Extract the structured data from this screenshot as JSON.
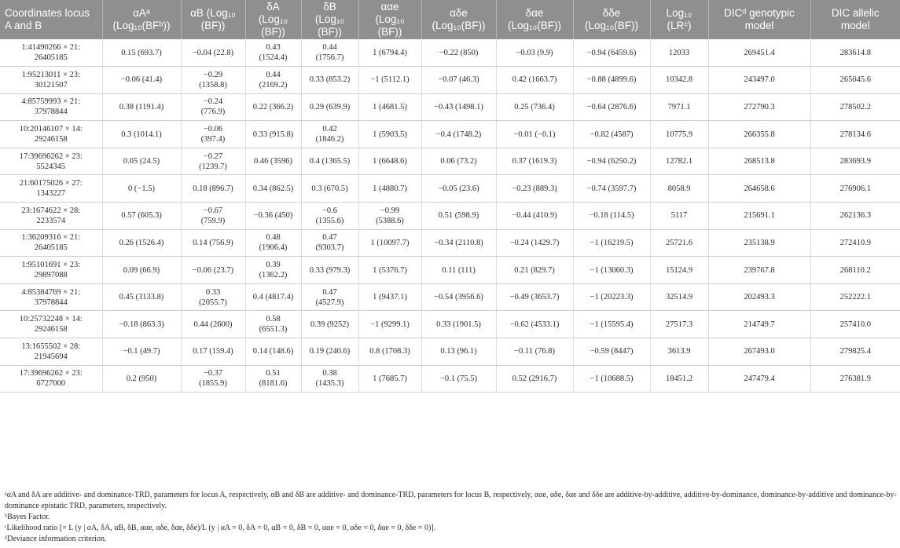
{
  "table": {
    "headers": [
      "Coordinates locus\nA and B",
      "αAᵃ\n(Log₁₀(BFᵇ))",
      "αB (Log₁₀\n(BF))",
      "δA\n(Log₁₀\n(BF))",
      "δB\n(Log₁₀\n(BF))",
      "ααe\n(Log₁₀\n(BF))",
      "αδe\n(Log₁₀(BF))",
      "δαe\n(Log₁₀(BF))",
      "δδe\n(Log₁₀(BF))",
      "Log₁₀\n(LRᶜ)",
      "DICᵈ genotypic\nmodel",
      "DIC allelic\nmodel"
    ],
    "rows": [
      [
        "1:41490266 × 21:\n26405185",
        "0.15 (693.7)",
        "−0.04 (22.8)",
        "0.43\n(1524.4)",
        "0.44\n(1756.7)",
        "1 (6794.4)",
        "−0.22 (850)",
        "−0.03 (9.9)",
        "−0.94 (6459.6)",
        "12033",
        "269451.4",
        "283614.8"
      ],
      [
        "1:95213011 × 23:\n30121507",
        "−0.06 (41.4)",
        "−0.29\n(1358.8)",
        "0.44\n(2169.2)",
        "0.33 (853.2)",
        "−1 (5112.1)",
        "−0.07 (46.3)",
        "0.42 (1663.7)",
        "−0.88 (4899.6)",
        "10342.8",
        "243497.0",
        "265045.6"
      ],
      [
        "4:85759993 × 21:\n37978844",
        "0.38 (1191.4)",
        "−0.24\n(776.9)",
        "0.22 (366.2)",
        "0.29 (639.9)",
        "1 (4681.5)",
        "−0.43 (1498.1)",
        "0.25 (736.4)",
        "−0.64 (2876.6)",
        "7971.1",
        "272790.3",
        "278502.2"
      ],
      [
        "10:20146107 × 14:\n29246158",
        "0.3 (1014.1)",
        "−0.06\n(397.4)",
        "0.33 (915.8)",
        "0.42\n(1846.2)",
        "1 (5903.5)",
        "−0.4 (1748.2)",
        "−0.01 (−0.1)",
        "−0.82 (4587)",
        "10775.9",
        "266355.8",
        "278134.6"
      ],
      [
        "17:39696262 × 23:\n5524345",
        "0.05 (24.5)",
        "−0.27\n(1239.7)",
        "0.46 (3596)",
        "0.4 (1365.5)",
        "1 (6648.6)",
        "0.06 (73.2)",
        "0.37 (1619.3)",
        "−0.94 (6250.2)",
        "12782.1",
        "268513.8",
        "283693.9"
      ],
      [
        "21:60175026 × 27:\n1343227",
        "0 (−1.5)",
        "0.18 (896.7)",
        "0.34 (862.5)",
        "0.3 (670.5)",
        "1 (4880.7)",
        "−0.05 (23.6)",
        "−0.23 (889.3)",
        "−0.74 (3597.7)",
        "8058.9",
        "264658.6",
        "276906.1"
      ],
      [
        "23:1674622 × 28:\n2233574",
        "0.57 (605.3)",
        "−0.67\n(759.9)",
        "−0.36 (450)",
        "−0.6\n(1355.6)",
        "−0.99\n(5388.6)",
        "0.51 (598.9)",
        "−0.44 (410.9)",
        "−0.18 (114.5)",
        "5117",
        "215691.1",
        "262136.3"
      ],
      [
        "1:36209316 × 21:\n26405185",
        "0.26 (1526.4)",
        "0.14 (756.9)",
        "0.48\n(1906.4)",
        "0.47\n(9303.7)",
        "1 (10097.7)",
        "−0.34 (2110.8)",
        "−0.24 (1429.7)",
        "−1 (16219.5)",
        "25721.6",
        "235138.9",
        "272410.9"
      ],
      [
        "1:95101691 × 23:\n29897088",
        "0.09 (66.9)",
        "−0.06 (23.7)",
        "0.39\n(1362.2)",
        "0.33 (979.3)",
        "1 (5376.7)",
        "0.11 (111)",
        "0.21 (829.7)",
        "−1 (13060.3)",
        "15124.9",
        "239767.8",
        "268110.2"
      ],
      [
        "4:85384769 × 21:\n37978844",
        "0.45 (3133.8)",
        "0.33\n(2055.7)",
        "0.4 (4817.4)",
        "0.47\n(4527.9)",
        "1 (9437.1)",
        "−0.54 (3956.6)",
        "−0.49 (3653.7)",
        "−1 (20223.3)",
        "32514.9",
        "202493.3",
        "252222.1"
      ],
      [
        "10:25732248 × 14:\n29246158",
        "−0.18 (863.3)",
        "0.44 (2600)",
        "0.58\n(6551.3)",
        "0.39 (9252)",
        "−1 (9299.1)",
        "0.33 (1901.5)",
        "−0.62 (4533.1)",
        "−1 (15595.4)",
        "27517.3",
        "214749.7",
        "257410.0"
      ],
      [
        "13:1655502 × 28:\n21945694",
        "−0.1 (49.7)",
        "0.17 (159.4)",
        "0.14 (148.6)",
        "0.19 (240.6)",
        "0.8 (1708.3)",
        "0.13 (96.1)",
        "−0.11 (76.8)",
        "−0.59 (8447)",
        "3613.9",
        "267493.0",
        "279825.4"
      ],
      [
        "17:39696262 × 23:\n6727000",
        "0.2 (950)",
        "−0.37\n(1855.9)",
        "0.51\n(8181.6)",
        "0.38\n(1435.3)",
        "1 (7685.7)",
        "−0.1 (75.5)",
        "0.52 (2916.7)",
        "−1 (10688.5)",
        "18451.2",
        "247479.4",
        "276381.9"
      ]
    ]
  },
  "footnotes": [
    "ᵃαA and δA are additive- and dominance-TRD, parameters for locus A, respectively, αB and δB are additive- and dominance-TRD, parameters for locus B, respectively, ααe, αδe, δαe and δδe are additive-by-additive, additive-by-dominance, dominance-by-additive and dominance-by-dominance epistatic TRD, parameters, respectively.",
    "ᵇBayes Factor.",
    "ᶜLikelihood ratio [= L (y | αA, δA, αB, δB, ααe, αδe, δαe, δδe)/L (y | αA = 0, δA = 0, αB = 0, δB = 0, ααe = 0, αδe = 0, δαe = 0, δδe = 0)].",
    "ᵈDeviance information criterion."
  ]
}
